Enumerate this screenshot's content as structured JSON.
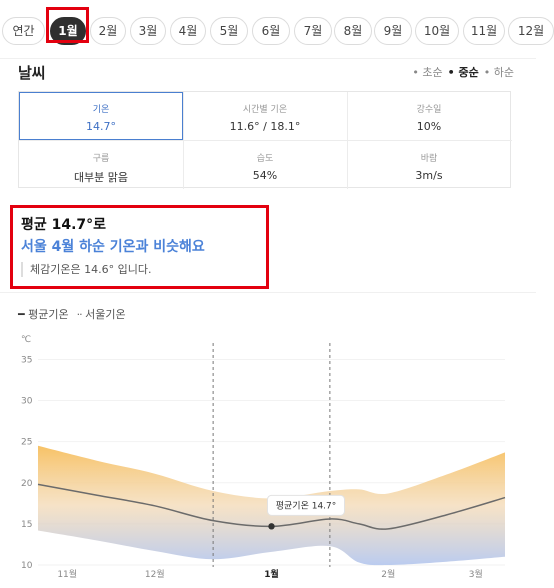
{
  "month_tabs": [
    {
      "label": "연간",
      "active": false
    },
    {
      "label": "1월",
      "active": true
    },
    {
      "label": "2월",
      "active": false
    },
    {
      "label": "3월",
      "active": false
    },
    {
      "label": "4월",
      "active": false
    },
    {
      "label": "5월",
      "active": false
    },
    {
      "label": "6월",
      "active": false
    },
    {
      "label": "7월",
      "active": false
    },
    {
      "label": "8월",
      "active": false
    },
    {
      "label": "9월",
      "active": false
    },
    {
      "label": "10월",
      "active": false
    },
    {
      "label": "11월",
      "active": false
    },
    {
      "label": "12월",
      "active": false
    }
  ],
  "weather": {
    "title": "날씨",
    "period_options": [
      {
        "label": "초순",
        "selected": false
      },
      {
        "label": "중순",
        "selected": true
      },
      {
        "label": "하순",
        "selected": false
      }
    ],
    "stats": [
      {
        "label": "기온",
        "value": "14.7°",
        "selected": true
      },
      {
        "label": "시간별 기온",
        "value": "11.6° / 18.1°",
        "selected": false
      },
      {
        "label": "강수일",
        "value": "10%",
        "selected": false
      },
      {
        "label": "구름",
        "value": "대부분 맑음",
        "selected": false
      },
      {
        "label": "습도",
        "value": "54%",
        "selected": false
      },
      {
        "label": "바람",
        "value": "3m/s",
        "selected": false
      }
    ]
  },
  "summary": {
    "title": "평균 14.7°로",
    "subtitle": "서울 4월 하순 기온과 비슷해요",
    "note": "체감기온은 14.6° 입니다."
  },
  "legend": {
    "avg": "평균기온",
    "seoul": "서울기온"
  },
  "colors": {
    "accent_blue": "#4b82d8",
    "highlight_red": "#e3000f",
    "band_warm": "#f5c26a",
    "band_cool": "#b7c8ec"
  },
  "chart_data": {
    "type": "area",
    "unit_label": "℃",
    "y_ticks": [
      "35",
      "30",
      "25",
      "20",
      "15",
      "10"
    ],
    "ylim": [
      10,
      37
    ],
    "x_ticks": [
      "11월",
      "12월",
      "1월",
      "2월",
      "3월"
    ],
    "x_tick_bold": "1월",
    "x_domain": [
      0,
      16
    ],
    "x_tick_positions": [
      1,
      4,
      8,
      12,
      15
    ],
    "highlight_range": [
      6,
      10
    ],
    "marker": {
      "x": 8,
      "y": 14.7,
      "label": "평균기온 14.7°"
    },
    "series": [
      {
        "name": "평균기온",
        "x": [
          0,
          2,
          4,
          6,
          8,
          10,
          11,
          12,
          14,
          16
        ],
        "y": [
          19.8,
          18.5,
          17.2,
          15.4,
          14.7,
          15.6,
          15.0,
          14.4,
          16.1,
          18.2
        ]
      },
      {
        "name": "서울기온",
        "x": [
          0,
          2,
          4,
          6,
          8,
          10,
          11,
          12,
          14,
          16
        ],
        "upper": [
          24.5,
          22.7,
          21.1,
          19.0,
          18.1,
          19.0,
          19.2,
          18.7,
          21.0,
          23.7
        ],
        "lower": [
          14.2,
          13.0,
          11.7,
          10.7,
          11.6,
          12.3,
          10.3,
          10.0,
          10.4,
          11.0
        ]
      }
    ]
  }
}
